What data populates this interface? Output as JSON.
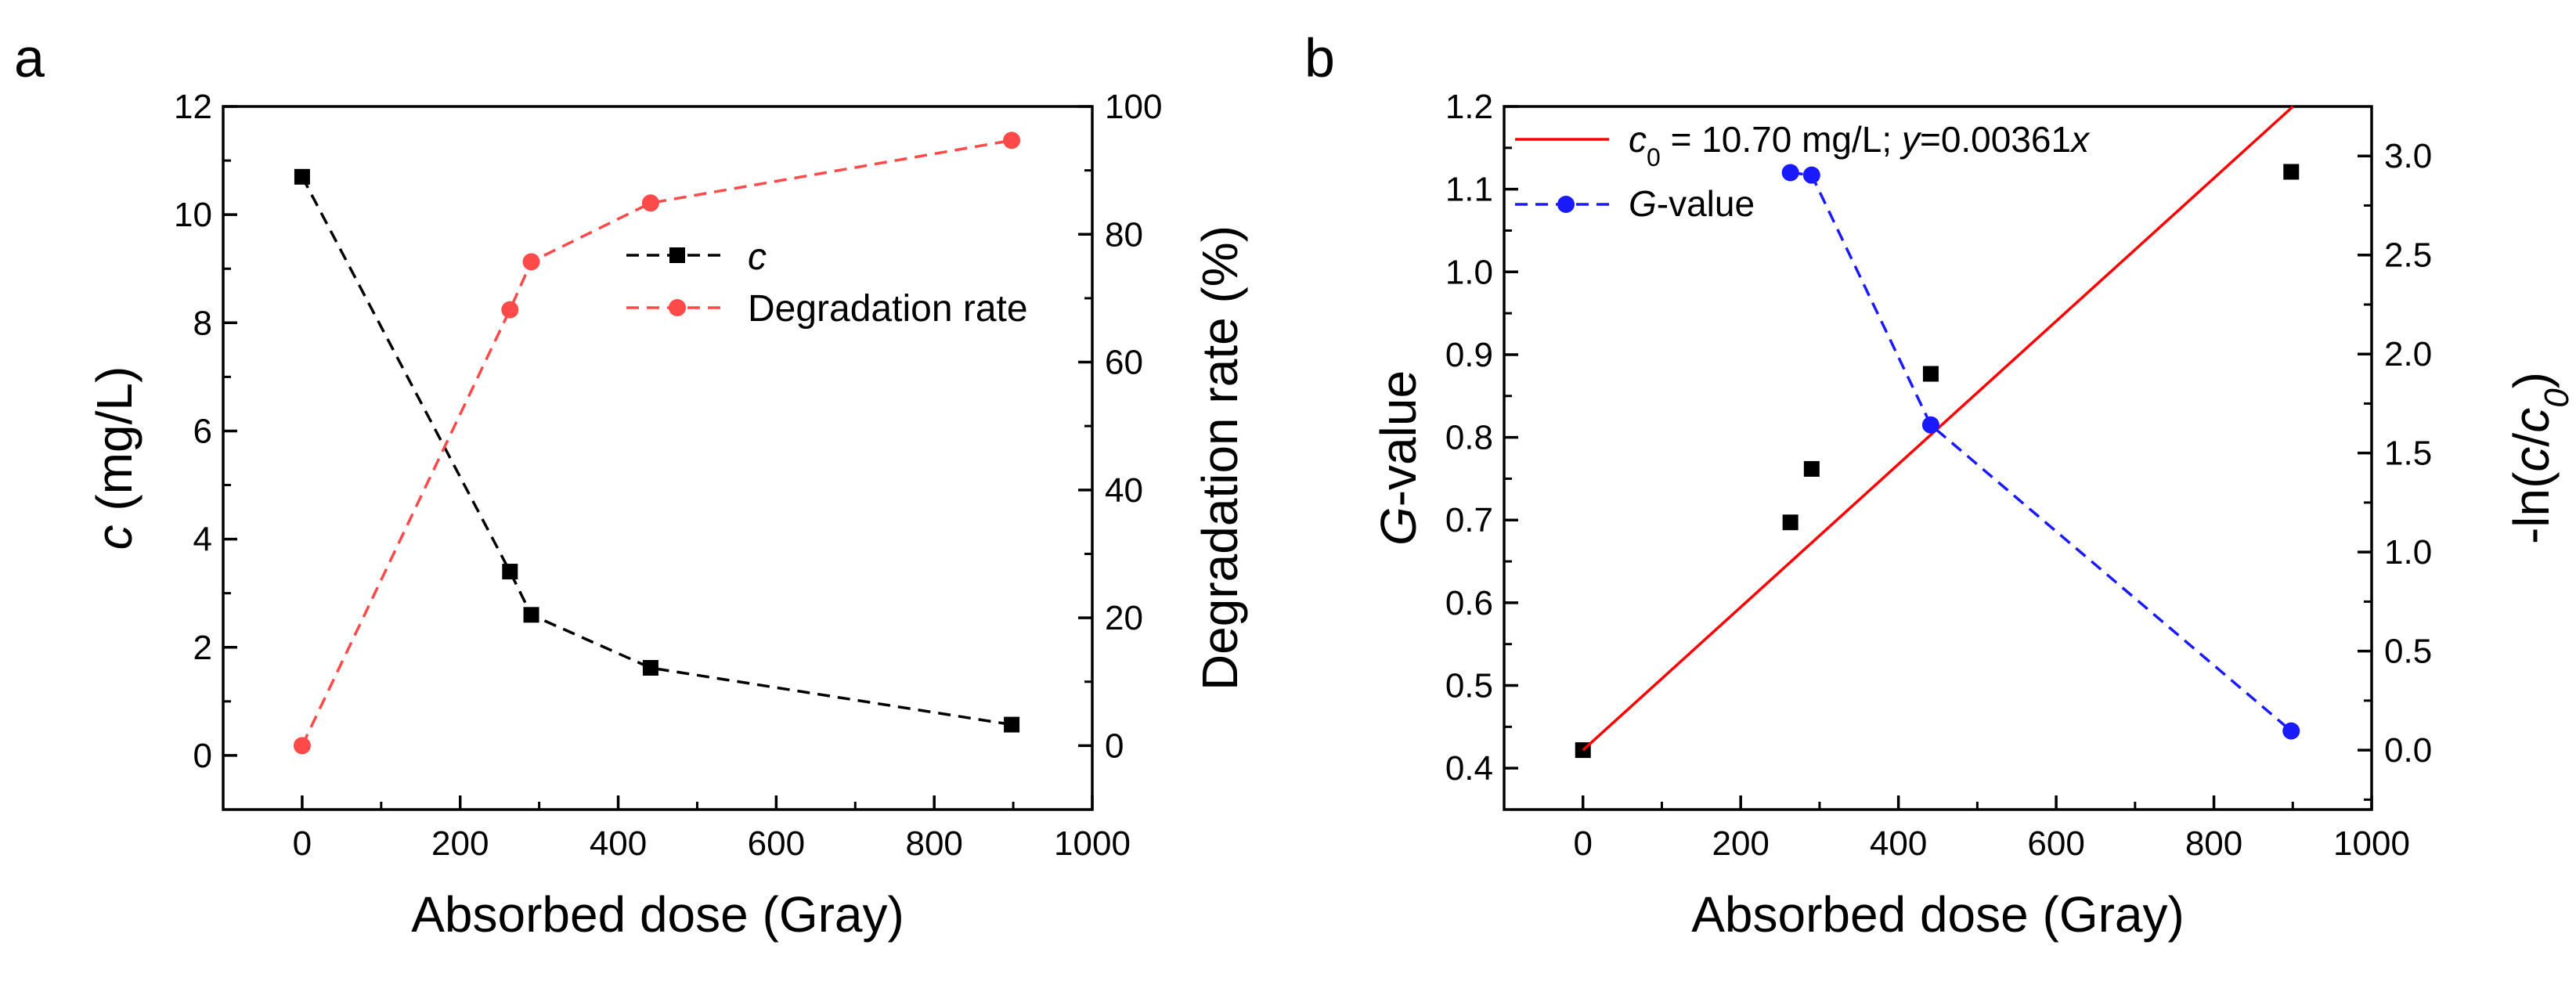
{
  "panel_labels": [
    "a",
    "b"
  ],
  "chart_data": [
    {
      "type": "line",
      "panel": "a",
      "x": [
        0,
        263,
        290,
        441,
        898
      ],
      "xlabel": "Absorbed dose (Gray)",
      "xlim": [
        -100,
        1000
      ],
      "xticks": [
        0,
        200,
        400,
        600,
        800,
        1000
      ],
      "left_axis": {
        "label_italic": "c",
        "label_rest": " (mg/L)",
        "ylim": [
          -1,
          12
        ],
        "ticks": [
          0,
          2,
          4,
          6,
          8,
          10,
          12
        ]
      },
      "right_axis": {
        "label": "Degradation rate (%)",
        "ylim": [
          -10,
          100
        ],
        "ticks": [
          0,
          20,
          40,
          60,
          80,
          100
        ]
      },
      "series": [
        {
          "name": "c",
          "axis": "left",
          "marker": "square",
          "style": "dashed",
          "color": "#000000",
          "values": [
            10.7,
            3.4,
            2.6,
            1.62,
            0.57
          ]
        },
        {
          "name": "Degradation rate",
          "axis": "right",
          "marker": "circle",
          "style": "dashed",
          "color": "#FF4A4A",
          "values": [
            0,
            68.2,
            75.7,
            84.9,
            94.7
          ]
        }
      ],
      "legend": {
        "position": "middle-right",
        "entries": [
          {
            "italic": "c",
            "rest": ""
          },
          {
            "italic": "",
            "rest": "Degradation rate"
          }
        ]
      }
    },
    {
      "type": "line",
      "panel": "b",
      "x": [
        0,
        263,
        290,
        441,
        898
      ],
      "xlabel": "Absorbed dose (Gray)",
      "xlim": [
        -100,
        1000
      ],
      "xticks": [
        0,
        200,
        400,
        600,
        800,
        1000
      ],
      "left_axis": {
        "label_italic": "G",
        "label_rest": "-value",
        "ylim": [
          0.35,
          1.2
        ],
        "ticks": [
          0.4,
          0.5,
          0.6,
          0.7,
          0.8,
          0.9,
          1.0,
          1.1,
          1.2
        ]
      },
      "right_axis": {
        "label_prefix": "-ln(",
        "label_c": "c",
        "label_slash": "/",
        "label_c0": "c",
        "label_sub": "0",
        "label_suffix": ")",
        "ylim": [
          -0.3,
          3.25
        ],
        "ticks": [
          0.0,
          0.5,
          1.0,
          1.5,
          2.0,
          2.5,
          3.0
        ]
      },
      "series": [
        {
          "name": "-ln(c/c0)",
          "axis": "right",
          "marker": "square",
          "style": "none",
          "color": "#000000",
          "values": [
            0,
            1.15,
            1.42,
            1.9,
            2.92
          ]
        },
        {
          "name": "fit",
          "axis": "right",
          "marker": "none",
          "style": "solid",
          "color": "#FF0000",
          "fit_slope": 0.00361,
          "fit_range": [
            0,
            1000
          ]
        },
        {
          "name": "G-value",
          "axis": "left",
          "marker": "circle",
          "style": "dashed",
          "color": "#1A1AFF",
          "values": [
            null,
            1.12,
            1.117,
            0.815,
            0.445
          ]
        }
      ],
      "legend": {
        "position": "top-left",
        "fit_entry": {
          "c_label": "c",
          "sub": "0",
          "text": " = 10.70 mg/L; ",
          "y_label": "y",
          "eq": "=0.00361",
          "x_label": "x"
        },
        "g_entry": {
          "italic": "G",
          "rest": "-value"
        }
      }
    }
  ],
  "colors": {
    "axis": "#000000",
    "black_series": "#000000",
    "red_series": "#FF4A4A",
    "fit_line": "#FF0000",
    "blue_series": "#1A1AFF"
  }
}
